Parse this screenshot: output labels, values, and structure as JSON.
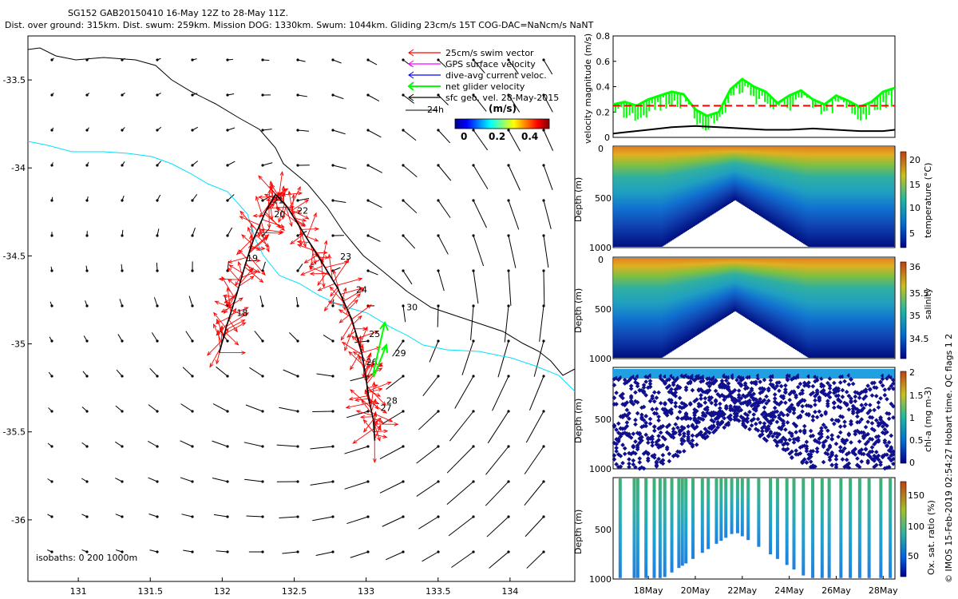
{
  "title": {
    "line1": "SG152 GAB20150410 16-May 12Z to 28-May 11Z.",
    "line2": "Dist. over ground: 315km. Dist. swum: 259km. Mission DOG: 1330km. Swum: 1044km. Gliding 23cm/s 15T COG-DAC=NaNcm/s NaNT"
  },
  "footer_text": "© IMOS 15-Feb-2019 02:54:27 Hobart time. QC flags 1  2",
  "chart_data": [
    {
      "type": "scatter",
      "panel": "map",
      "xlim": [
        130.65,
        134.45
      ],
      "ylim": [
        -36.35,
        -33.25
      ],
      "x_ticks": [
        131,
        131.5,
        132,
        132.5,
        133,
        133.5,
        134
      ],
      "y_ticks": [
        -33.5,
        -34,
        -34.5,
        -35,
        -35.5,
        -36
      ],
      "legend": {
        "entries": [
          {
            "label": "25cm/s swim vector",
            "color": "#ff0000"
          },
          {
            "label": "GPS surface velocity",
            "color": "#ff00ff"
          },
          {
            "label": "dive-avg current veloc.",
            "color": "#0000ff"
          },
          {
            "label": "net glider velocity",
            "color": "#00ff00"
          },
          {
            "label": "sfc geo. vel. 28-May-2015",
            "color": "#000000"
          }
        ],
        "position": "top-right"
      },
      "colorbar": {
        "label": "(m/s)",
        "ticks": [
          "0",
          "0.2",
          "0.4"
        ],
        "range": [
          0,
          0.5
        ]
      },
      "scale_label": "24h",
      "isobath_label": "isobaths: 0   200  1000m",
      "track_day_labels": [
        {
          "label": "20",
          "x": 132.36,
          "y": -34.28
        },
        {
          "label": "19",
          "x": 132.17,
          "y": -34.53
        },
        {
          "label": "18",
          "x": 132.1,
          "y": -34.84
        },
        {
          "label": "21",
          "x": 132.35,
          "y": -34.2
        },
        {
          "label": "22",
          "x": 132.52,
          "y": -34.26
        },
        {
          "label": "23",
          "x": 132.82,
          "y": -34.52
        },
        {
          "label": "24",
          "x": 132.93,
          "y": -34.71
        },
        {
          "label": "25",
          "x": 133.02,
          "y": -34.96
        },
        {
          "label": "29",
          "x": 133.2,
          "y": -35.07
        },
        {
          "label": "26",
          "x": 133.0,
          "y": -35.12
        },
        {
          "label": "28",
          "x": 133.14,
          "y": -35.34
        },
        {
          "label": "27",
          "x": 133.1,
          "y": -35.38
        },
        {
          "label": "30",
          "x": 133.28,
          "y": -34.81
        }
      ],
      "glider_track": {
        "lon": [
          131.98,
          132.03,
          132.1,
          132.16,
          132.22,
          132.3,
          132.37,
          132.45,
          132.55,
          132.68,
          132.8,
          132.9,
          132.97,
          133.0,
          133.02,
          133.05,
          133.06
        ],
        "lat": [
          -35.05,
          -34.9,
          -34.72,
          -34.55,
          -34.4,
          -34.25,
          -34.15,
          -34.22,
          -34.35,
          -34.52,
          -34.68,
          -34.86,
          -35.05,
          -35.2,
          -35.32,
          -35.43,
          -35.55
        ]
      }
    },
    {
      "type": "line",
      "panel": "velocity",
      "ylabel": "velocity magnitude (m/s)",
      "ylim": [
        0,
        0.8
      ],
      "y_ticks": [
        0,
        0.2,
        0.4,
        0.6,
        0.8
      ],
      "xlim": [
        16.5,
        28.5
      ],
      "series": [
        {
          "color": "#00ff00",
          "x": [
            16.5,
            17,
            17.5,
            18,
            18.5,
            19,
            19.5,
            20,
            20.5,
            21,
            21.5,
            22,
            22.5,
            23,
            23.5,
            24,
            24.5,
            25,
            25.5,
            26,
            26.5,
            27,
            27.5,
            28,
            28.5
          ],
          "values": [
            0.26,
            0.28,
            0.25,
            0.3,
            0.33,
            0.36,
            0.34,
            0.22,
            0.17,
            0.2,
            0.38,
            0.46,
            0.4,
            0.36,
            0.27,
            0.33,
            0.37,
            0.3,
            0.26,
            0.33,
            0.29,
            0.24,
            0.28,
            0.36,
            0.39
          ]
        },
        {
          "color": "#ff0000",
          "dashed": true,
          "x": [
            16.5,
            28.5
          ],
          "values": [
            0.25,
            0.25
          ]
        },
        {
          "color": "#000000",
          "x": [
            16.5,
            17,
            18,
            19,
            20,
            21,
            22,
            23,
            24,
            25,
            26,
            27,
            28,
            28.5
          ],
          "values": [
            0.03,
            0.04,
            0.06,
            0.08,
            0.09,
            0.08,
            0.07,
            0.06,
            0.06,
            0.07,
            0.06,
            0.05,
            0.05,
            0.06
          ]
        }
      ]
    },
    {
      "type": "heatmap",
      "panel": "temperature",
      "ylabel": "Depth (m)",
      "colorbar_label": "temperature (°C)",
      "colorbar_ticks": [
        "20",
        "15",
        "10",
        "5"
      ],
      "value_range": [
        3,
        22
      ],
      "ylim": [
        0,
        1000
      ],
      "y_ticks": [
        "0",
        "500",
        "1000"
      ]
    },
    {
      "type": "heatmap",
      "panel": "salinity",
      "ylabel": "Depth (m)",
      "colorbar_label": "salinity",
      "colorbar_ticks": [
        "36",
        "35.5",
        "35",
        "34.5"
      ],
      "value_range": [
        34.2,
        36.1
      ],
      "ylim": [
        0,
        1000
      ],
      "y_ticks": [
        "0",
        "500",
        "1000"
      ]
    },
    {
      "type": "heatmap",
      "panel": "chlorophyll",
      "ylabel": "Depth (m)",
      "colorbar_label": "chl-a (mg m-3)",
      "colorbar_ticks": [
        "2",
        "1.5",
        "1",
        "0.5",
        "0"
      ],
      "value_range": [
        0,
        2
      ],
      "ylim": [
        0,
        1000
      ],
      "y_ticks": [
        "500",
        "1000"
      ]
    },
    {
      "type": "heatmap",
      "panel": "oxygen",
      "ylabel": "Depth (m)",
      "colorbar_label": "Ox. sat. ratio (%)",
      "colorbar_ticks": [
        "150",
        "100",
        "50"
      ],
      "value_range": [
        20,
        175
      ],
      "ylim": [
        0,
        1000
      ],
      "y_ticks": [
        "500",
        "1000"
      ],
      "x_ticks": [
        "18May",
        "20May",
        "22May",
        "24May",
        "26May",
        "28May"
      ],
      "xlim": [
        16.5,
        28.5
      ]
    }
  ]
}
